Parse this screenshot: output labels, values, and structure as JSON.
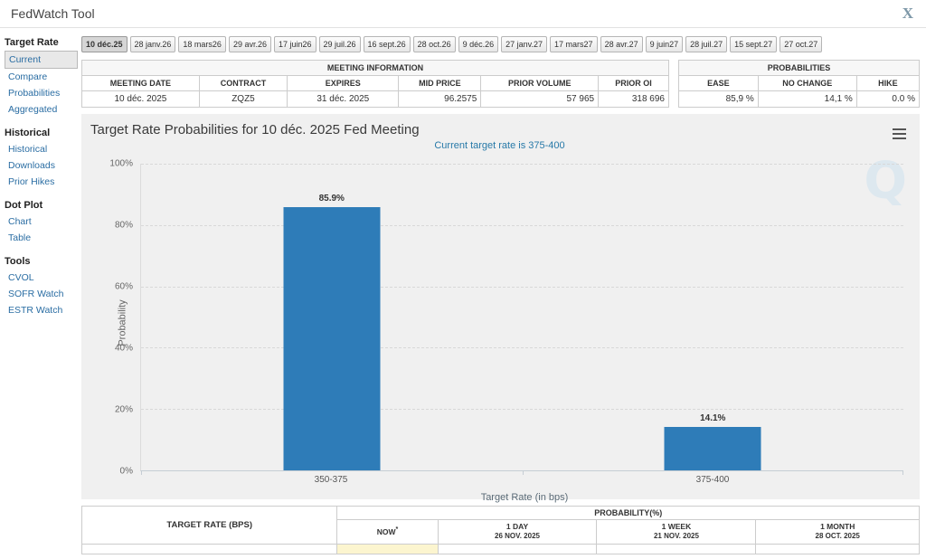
{
  "header": {
    "title": "FedWatch Tool",
    "close_glyph": "X"
  },
  "sidebar": {
    "sections": [
      {
        "title": "Target Rate",
        "items": [
          "Current",
          "Compare",
          "Probabilities",
          "Aggregated"
        ]
      },
      {
        "title": "Historical",
        "items": [
          "Historical",
          "Downloads",
          "Prior Hikes"
        ]
      },
      {
        "title": "Dot Plot",
        "items": [
          "Chart",
          "Table"
        ]
      },
      {
        "title": "Tools",
        "items": [
          "CVOL",
          "SOFR Watch",
          "ESTR Watch"
        ]
      }
    ]
  },
  "date_tabs": [
    "10 déc.25",
    "28 janv.26",
    "18 mars26",
    "29 avr.26",
    "17 juin26",
    "29 juil.26",
    "16 sept.26",
    "28 oct.26",
    "9 déc.26",
    "27 janv.27",
    "17 mars27",
    "28 avr.27",
    "9 juin27",
    "28 juil.27",
    "15 sept.27",
    "27 oct.27"
  ],
  "meeting_info": {
    "caption": "MEETING INFORMATION",
    "headers": [
      "MEETING DATE",
      "CONTRACT",
      "EXPIRES",
      "MID PRICE",
      "PRIOR VOLUME",
      "PRIOR OI"
    ],
    "row": [
      "10 déc. 2025",
      "ZQZ5",
      "31 déc. 2025",
      "96.2575",
      "57 965",
      "318 696"
    ]
  },
  "probabilities": {
    "caption": "PROBABILITIES",
    "headers": [
      "EASE",
      "NO CHANGE",
      "HIKE"
    ],
    "row": [
      "85,9 %",
      "14,1 %",
      "0.0 %"
    ]
  },
  "chart_data": {
    "type": "bar",
    "title": "Target Rate Probabilities for 10 déc. 2025 Fed Meeting",
    "subtitle": "Current target rate is 375-400",
    "categories": [
      "350-375",
      "375-400"
    ],
    "values": [
      85.9,
      14.1
    ],
    "value_labels": [
      "85.9%",
      "14.1%"
    ],
    "xlabel": "Target Rate (in bps)",
    "ylabel": "Probability",
    "ylim": [
      0,
      100
    ],
    "ytick_labels": [
      "0%",
      "20%",
      "40%",
      "60%",
      "80%",
      "100%"
    ],
    "bar_color": "#2e7cb8",
    "grid": "dashed-horizontal",
    "legend": false,
    "watermark": "Q",
    "background": "#f0f0f0"
  },
  "bottom_table": {
    "col1_header": "TARGET RATE (BPS)",
    "group_header": "PROBABILITY(%)",
    "columns": [
      {
        "label": "NOW",
        "sup": "*",
        "date": ""
      },
      {
        "label": "1 DAY",
        "date": "26 NOV. 2025"
      },
      {
        "label": "1 WEEK",
        "date": "21 NOV. 2025"
      },
      {
        "label": "1 MONTH",
        "date": "28 OCT. 2025"
      }
    ]
  }
}
